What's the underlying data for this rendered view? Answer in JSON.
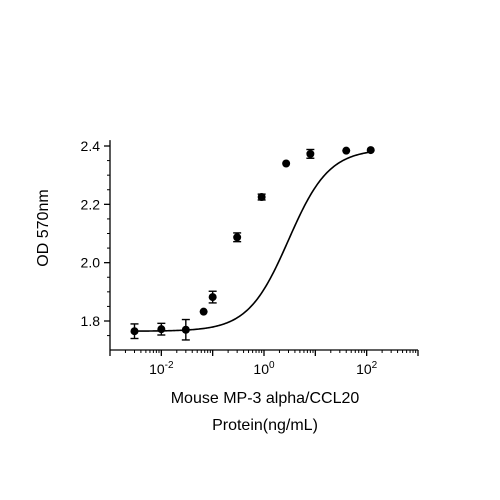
{
  "chart_data": {
    "type": "scatter",
    "xscale": "log",
    "xlim": [
      0.001,
      1000
    ],
    "ylim": [
      1.72,
      2.42
    ],
    "xlabel_line1": "Mouse MP-3 alpha/CCL20",
    "xlabel_line2": "Protein(ng/mL)",
    "ylabel": "OD 570nm",
    "x_ticks": [
      {
        "value": 0.01,
        "base": "10",
        "exp": "-2"
      },
      {
        "value": 1,
        "base": "10",
        "exp": "0"
      },
      {
        "value": 100,
        "base": "10",
        "exp": "2"
      }
    ],
    "y_ticks": [
      {
        "value": 1.8,
        "label": "1.8"
      },
      {
        "value": 2.0,
        "label": "2.0"
      },
      {
        "value": 2.2,
        "label": "2.2"
      },
      {
        "value": 2.4,
        "label": "2.4"
      }
    ],
    "points": [
      {
        "x": 0.003,
        "y": 1.765,
        "err": 0.025
      },
      {
        "x": 0.01,
        "y": 1.772,
        "err": 0.02
      },
      {
        "x": 0.03,
        "y": 1.77,
        "err": 0.035
      },
      {
        "x": 0.0667,
        "y": 1.832,
        "err": 0.0
      },
      {
        "x": 0.1,
        "y": 1.882,
        "err": 0.02
      },
      {
        "x": 0.3,
        "y": 2.087,
        "err": 0.015
      },
      {
        "x": 0.9,
        "y": 2.225,
        "err": 0.01
      },
      {
        "x": 2.7,
        "y": 2.34,
        "err": 0.0
      },
      {
        "x": 8,
        "y": 2.373,
        "err": 0.015
      },
      {
        "x": 40,
        "y": 2.384,
        "err": 0.0
      },
      {
        "x": 120,
        "y": 2.386,
        "err": 0.0
      }
    ],
    "fit": {
      "bottom": 1.765,
      "top": 2.39,
      "ec50": 3.0,
      "hill": 1.1
    },
    "colors": {
      "marker": "#000000",
      "line": "#000000"
    },
    "grid": false
  }
}
